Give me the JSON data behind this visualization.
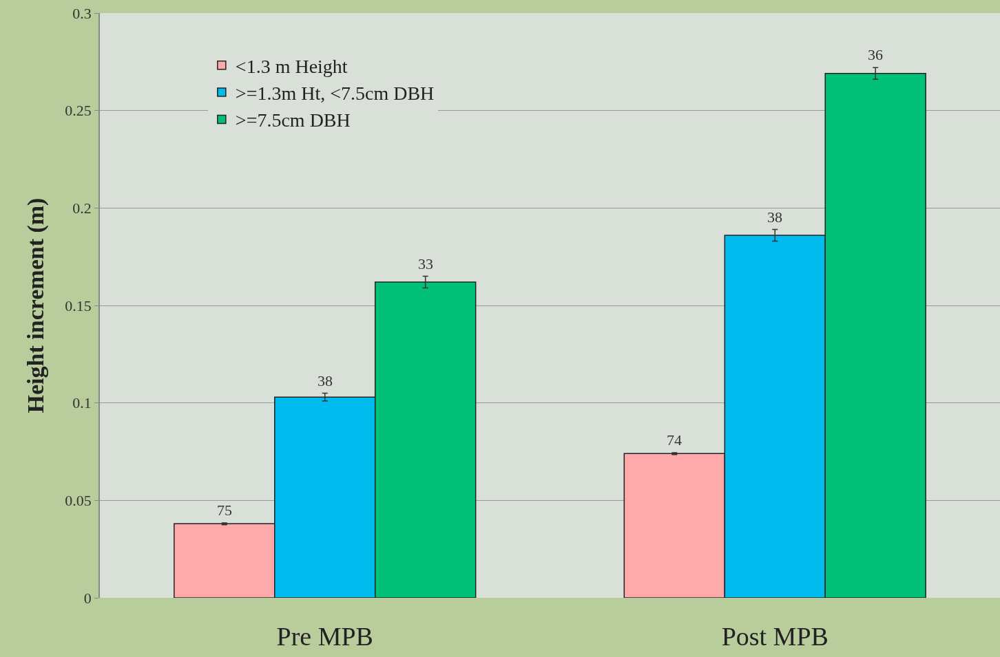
{
  "chart_data": {
    "type": "bar",
    "ylabel": "Height increment (m)",
    "categories": [
      "Pre MPB",
      "Post MPB"
    ],
    "series": [
      {
        "name": "<1.3 m Height",
        "color": "#ffaaaa",
        "values": [
          0.038,
          0.074
        ],
        "errors": [
          0.0005,
          0.0005
        ]
      },
      {
        "name": ">=1.3m Ht, <7.5cm DBH",
        "color": "#00bbee",
        "values": [
          0.103,
          0.186
        ],
        "errors": [
          0.002,
          0.003
        ]
      },
      {
        "name": ">=7.5cm DBH",
        "color": "#00c177",
        "values": [
          0.162,
          0.269
        ],
        "errors": [
          0.003,
          0.003
        ]
      }
    ],
    "annotations": [
      "75",
      "38",
      "33",
      "74",
      "38",
      "36"
    ],
    "ylim": [
      0,
      0.3
    ],
    "yticks": [
      0,
      0.05,
      0.1,
      0.15,
      0.2,
      0.25,
      0.3
    ],
    "grid": "y",
    "legend": "top left"
  }
}
